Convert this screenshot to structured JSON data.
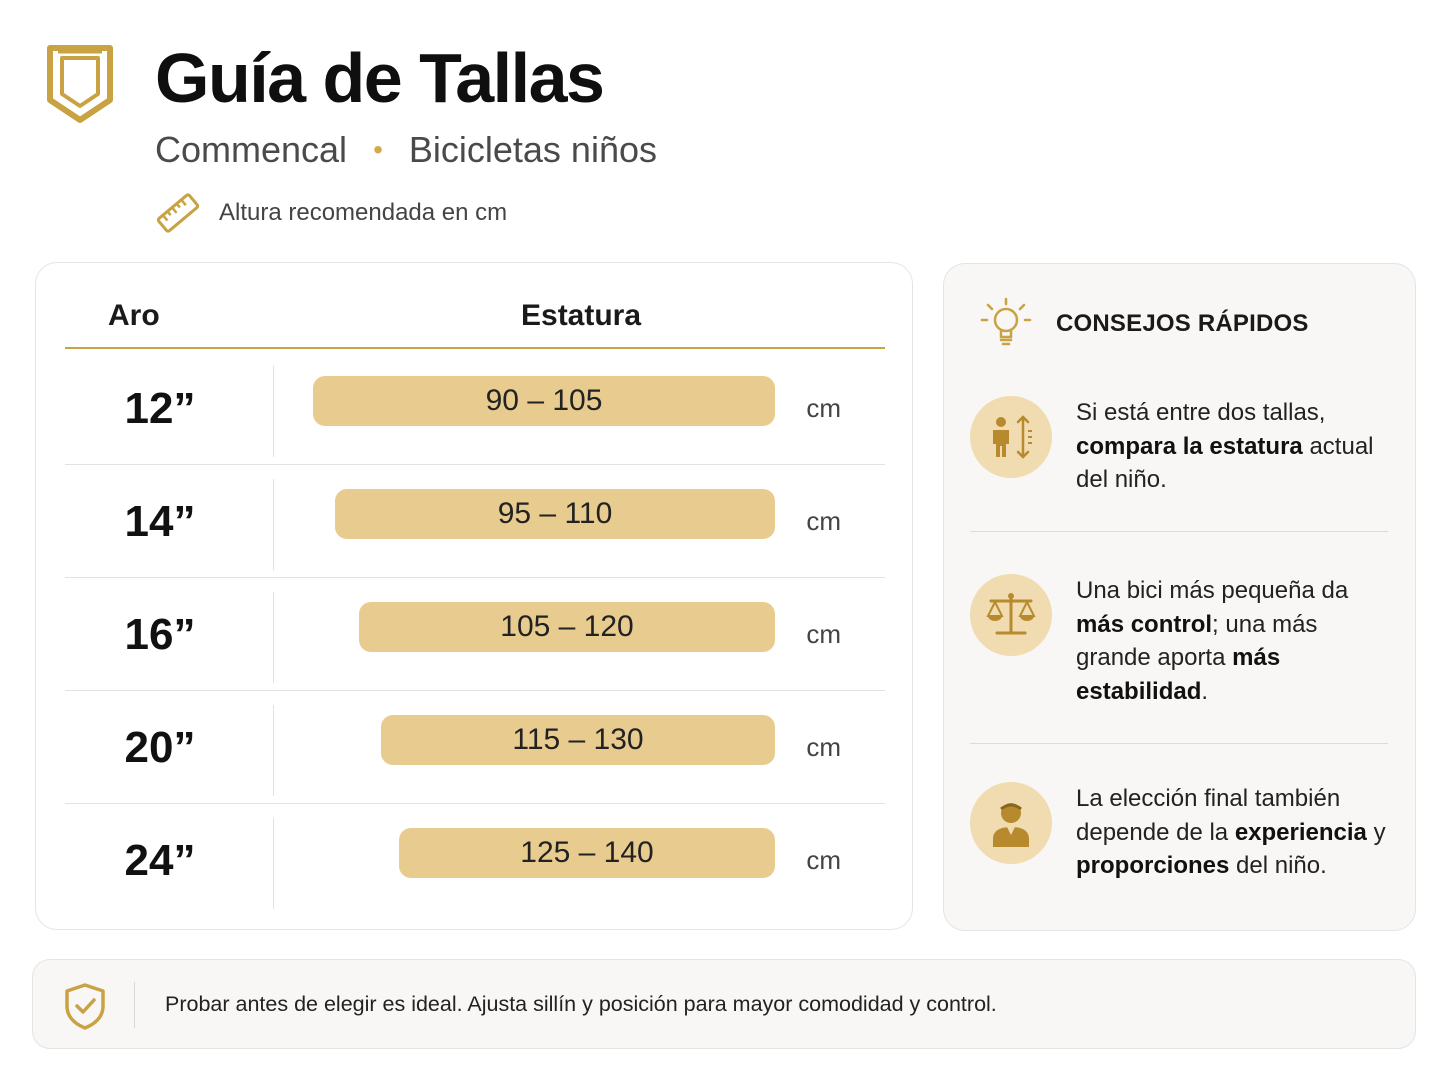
{
  "header": {
    "title": "Guía de Tallas",
    "brand": "Commencal",
    "category": "Bicicletas niños",
    "separator": "•",
    "note": "Altura recomendada en cm"
  },
  "table": {
    "col_aro": "Aro",
    "col_estatura": "Estatura",
    "rows": [
      {
        "size": "12”",
        "range": "90 – 105",
        "unit": "cm"
      },
      {
        "size": "14”",
        "range": "95 – 110",
        "unit": "cm"
      },
      {
        "size": "16”",
        "range": "105 – 120",
        "unit": "cm"
      },
      {
        "size": "20”",
        "range": "115 – 130",
        "unit": "cm"
      },
      {
        "size": "24”",
        "range": "125 – 140",
        "unit": "cm"
      }
    ]
  },
  "tips": {
    "title": "CONSEJOS RÁPIDOS",
    "items": [
      {
        "icon": "child-height-icon",
        "parts": [
          [
            "Si está entre dos tallas, ",
            false
          ],
          [
            "compara la estatura",
            true
          ],
          [
            " actual del niño.",
            false
          ]
        ]
      },
      {
        "icon": "balance-scale-icon",
        "parts": [
          [
            "Una bici más pequeña da ",
            false
          ],
          [
            "más control",
            true
          ],
          [
            "; una más grande aporta ",
            false
          ],
          [
            "más estabilidad",
            true
          ],
          [
            ".",
            false
          ]
        ]
      },
      {
        "icon": "rider-person-icon",
        "parts": [
          [
            "La elección final también depende de la ",
            false
          ],
          [
            "experiencia",
            true
          ],
          [
            " y ",
            false
          ],
          [
            "proporciones",
            true
          ],
          [
            " del niño.",
            false
          ]
        ]
      }
    ]
  },
  "footer": {
    "text": "Probar antes de elegir es ideal. Ajusta sillín y posición para mayor comodidad y control."
  },
  "colors": {
    "accent": "#c9a244",
    "bar": "#e8cb8e",
    "icon_circle": "#f0dcb0"
  }
}
